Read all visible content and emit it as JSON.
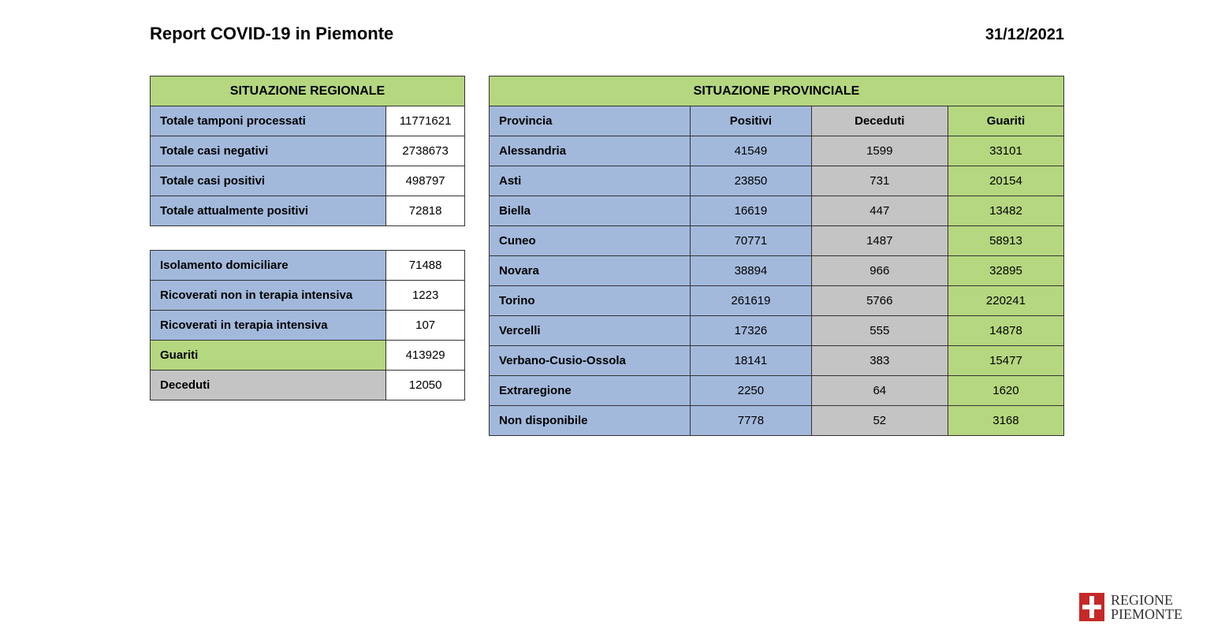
{
  "header": {
    "title": "Report COVID-19 in Piemonte",
    "date": "31/12/2021"
  },
  "regional": {
    "title": "SITUAZIONE REGIONALE",
    "rows": [
      {
        "label": "Totale tamponi processati",
        "value": "11771621",
        "labelCls": "cell-blue",
        "valCls": "cell-white-center"
      },
      {
        "label": "Totale casi negativi",
        "value": "2738673",
        "labelCls": "cell-blue",
        "valCls": "cell-white-center"
      },
      {
        "label": "Totale casi positivi",
        "value": "498797",
        "labelCls": "cell-blue",
        "valCls": "cell-white-center"
      },
      {
        "label": "Totale attualmente positivi",
        "value": "72818",
        "labelCls": "cell-blue",
        "valCls": "cell-white-center"
      }
    ]
  },
  "regional2": {
    "rows": [
      {
        "label": "Isolamento domiciliare",
        "value": "71488",
        "labelCls": "cell-blue",
        "valCls": "cell-white-center"
      },
      {
        "label": "Ricoverati non in terapia intensiva",
        "value": "1223",
        "labelCls": "cell-blue",
        "valCls": "cell-white-center"
      },
      {
        "label": "Ricoverati in terapia intensiva",
        "value": "107",
        "labelCls": "cell-blue",
        "valCls": "cell-white-center"
      },
      {
        "label": "Guariti",
        "value": "413929",
        "labelCls": "cell-green",
        "valCls": "cell-white-center"
      },
      {
        "label": "Deceduti",
        "value": "12050",
        "labelCls": "cell-grey",
        "valCls": "cell-white-center"
      }
    ]
  },
  "provincial": {
    "title": "SITUAZIONE PROVINCIALE",
    "columns": [
      "Provincia",
      "Positivi",
      "Deceduti",
      "Guariti"
    ],
    "colCls": [
      "cell-blue-left",
      "cell-blue-center",
      "cell-grey-center",
      "cell-green-center"
    ],
    "rows": [
      {
        "provincia": "Alessandria",
        "positivi": "41549",
        "deceduti": "1599",
        "guariti": "33101"
      },
      {
        "provincia": "Asti",
        "positivi": "23850",
        "deceduti": "731",
        "guariti": "20154"
      },
      {
        "provincia": "Biella",
        "positivi": "16619",
        "deceduti": "447",
        "guariti": "13482"
      },
      {
        "provincia": "Cuneo",
        "positivi": "70771",
        "deceduti": "1487",
        "guariti": "58913"
      },
      {
        "provincia": "Novara",
        "positivi": "38894",
        "deceduti": "966",
        "guariti": "32895"
      },
      {
        "provincia": "Torino",
        "positivi": "261619",
        "deceduti": "5766",
        "guariti": "220241"
      },
      {
        "provincia": "Vercelli",
        "positivi": "17326",
        "deceduti": "555",
        "guariti": "14878"
      },
      {
        "provincia": "Verbano-Cusio-Ossola",
        "positivi": "18141",
        "deceduti": "383",
        "guariti": "15477"
      },
      {
        "provincia": "Extraregione",
        "positivi": "2250",
        "deceduti": "64",
        "guariti": "1620"
      },
      {
        "provincia": "Non disponibile",
        "positivi": "7778",
        "deceduti": "52",
        "guariti": "3168"
      }
    ]
  },
  "logo": {
    "line1": "REGIONE",
    "line2": "PIEMONTE"
  }
}
